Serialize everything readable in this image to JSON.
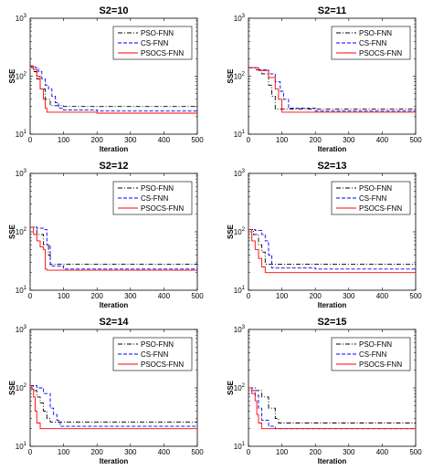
{
  "colors": {
    "PSO-FNN": "#000000",
    "CS-FNN": "#0000ff",
    "PSOCS-FNN": "#ff0000"
  },
  "chart_data": [
    {
      "type": "line",
      "title": "S2=10",
      "xlabel": "Iteration",
      "ylabel": "SSE",
      "xlim": [
        0,
        500
      ],
      "ylim": [
        10,
        1000
      ],
      "yscale": "log",
      "xticks": [
        "0",
        "100",
        "200",
        "300",
        "400",
        "500"
      ],
      "yticks": [
        {
          "base": "10",
          "exp": "1"
        },
        {
          "base": "10",
          "exp": "2"
        },
        {
          "base": "10",
          "exp": "3"
        }
      ],
      "legend": "top-right",
      "series": [
        {
          "name": "PSO-FNN",
          "style": "dashdot",
          "x": [
            0,
            5,
            10,
            20,
            30,
            45,
            60,
            100,
            500
          ],
          "y": [
            150,
            140,
            120,
            90,
            60,
            40,
            31,
            30,
            30
          ]
        },
        {
          "name": "CS-FNN",
          "style": "dashed",
          "x": [
            0,
            15,
            25,
            35,
            45,
            55,
            65,
            75,
            85,
            100,
            200,
            500
          ],
          "y": [
            150,
            140,
            120,
            90,
            70,
            60,
            45,
            35,
            28,
            26,
            25,
            25
          ]
        },
        {
          "name": "PSOCS-FNN",
          "style": "solid",
          "x": [
            0,
            10,
            20,
            30,
            40,
            45,
            50,
            200,
            500
          ],
          "y": [
            150,
            130,
            100,
            60,
            40,
            28,
            24,
            23,
            23
          ]
        }
      ]
    },
    {
      "type": "line",
      "title": "S2=11",
      "xlabel": "Iteration",
      "ylabel": "SSE",
      "xlim": [
        0,
        500
      ],
      "ylim": [
        10,
        1000
      ],
      "yscale": "log",
      "xticks": [
        "0",
        "100",
        "200",
        "300",
        "400",
        "500"
      ],
      "yticks": [
        {
          "base": "10",
          "exp": "1"
        },
        {
          "base": "10",
          "exp": "2"
        },
        {
          "base": "10",
          "exp": "3"
        }
      ],
      "legend": "top-right",
      "series": [
        {
          "name": "PSO-FNN",
          "style": "dashdot",
          "x": [
            0,
            20,
            40,
            60,
            70,
            80,
            500
          ],
          "y": [
            140,
            130,
            110,
            70,
            45,
            27,
            27
          ]
        },
        {
          "name": "CS-FNN",
          "style": "dashed",
          "x": [
            0,
            30,
            60,
            80,
            95,
            105,
            120,
            200,
            500
          ],
          "y": [
            140,
            130,
            110,
            80,
            55,
            40,
            28,
            25,
            25
          ]
        },
        {
          "name": "PSOCS-FNN",
          "style": "solid",
          "x": [
            0,
            30,
            60,
            80,
            90,
            100,
            500
          ],
          "y": [
            140,
            125,
            95,
            60,
            40,
            24,
            23
          ]
        }
      ]
    },
    {
      "type": "line",
      "title": "S2=12",
      "xlabel": "Iteration",
      "ylabel": "SSE",
      "xlim": [
        0,
        500
      ],
      "ylim": [
        10,
        1000
      ],
      "yscale": "log",
      "xticks": [
        "0",
        "100",
        "200",
        "300",
        "400",
        "500"
      ],
      "yticks": [
        {
          "base": "10",
          "exp": "1"
        },
        {
          "base": "10",
          "exp": "2"
        },
        {
          "base": "10",
          "exp": "3"
        }
      ],
      "legend": "top-right",
      "series": [
        {
          "name": "PSO-FNN",
          "style": "dashdot",
          "x": [
            0,
            20,
            40,
            55,
            60,
            500
          ],
          "y": [
            120,
            90,
            60,
            40,
            28,
            27
          ]
        },
        {
          "name": "CS-FNN",
          "style": "dashed",
          "x": [
            0,
            20,
            40,
            50,
            60,
            100,
            500
          ],
          "y": [
            120,
            115,
            110,
            60,
            26,
            23,
            22
          ]
        },
        {
          "name": "PSOCS-FNN",
          "style": "solid",
          "x": [
            0,
            10,
            20,
            30,
            40,
            45,
            50,
            500
          ],
          "y": [
            120,
            90,
            70,
            55,
            50,
            23,
            22,
            22
          ]
        }
      ]
    },
    {
      "type": "line",
      "title": "S2=13",
      "xlabel": "Iteration",
      "ylabel": "SSE",
      "xlim": [
        0,
        500
      ],
      "ylim": [
        10,
        1000
      ],
      "yscale": "log",
      "xticks": [
        "0",
        "100",
        "200",
        "300",
        "400",
        "500"
      ],
      "yticks": [
        {
          "base": "10",
          "exp": "1"
        },
        {
          "base": "10",
          "exp": "2"
        },
        {
          "base": "10",
          "exp": "3"
        }
      ],
      "legend": "top-right",
      "series": [
        {
          "name": "PSO-FNN",
          "style": "dashdot",
          "x": [
            0,
            15,
            30,
            40,
            50,
            500
          ],
          "y": [
            110,
            90,
            60,
            45,
            28,
            27
          ]
        },
        {
          "name": "CS-FNN",
          "style": "dashed",
          "x": [
            0,
            20,
            40,
            50,
            60,
            70,
            200,
            500
          ],
          "y": [
            110,
            105,
            90,
            70,
            40,
            24,
            23,
            23
          ]
        },
        {
          "name": "PSOCS-FNN",
          "style": "solid",
          "x": [
            0,
            10,
            20,
            30,
            40,
            50,
            500
          ],
          "y": [
            110,
            70,
            50,
            35,
            25,
            20,
            20
          ]
        }
      ]
    },
    {
      "type": "line",
      "title": "S2=14",
      "xlabel": "Iteration",
      "ylabel": "SSE",
      "xlim": [
        0,
        500
      ],
      "ylim": [
        10,
        1000
      ],
      "yscale": "log",
      "xticks": [
        "0",
        "100",
        "200",
        "300",
        "400",
        "500"
      ],
      "yticks": [
        {
          "base": "10",
          "exp": "1"
        },
        {
          "base": "10",
          "exp": "2"
        },
        {
          "base": "10",
          "exp": "3"
        }
      ],
      "legend": "top-right",
      "series": [
        {
          "name": "PSO-FNN",
          "style": "dashdot",
          "x": [
            0,
            10,
            20,
            30,
            40,
            50,
            60,
            500
          ],
          "y": [
            110,
            90,
            70,
            55,
            40,
            30,
            26,
            26
          ]
        },
        {
          "name": "CS-FNN",
          "style": "dashed",
          "x": [
            0,
            20,
            40,
            60,
            70,
            80,
            90,
            500
          ],
          "y": [
            110,
            100,
            80,
            45,
            35,
            28,
            22,
            22
          ]
        },
        {
          "name": "PSOCS-FNN",
          "style": "solid",
          "x": [
            0,
            5,
            10,
            15,
            20,
            30,
            500
          ],
          "y": [
            110,
            95,
            70,
            40,
            25,
            20,
            20
          ]
        }
      ]
    },
    {
      "type": "line",
      "title": "S2=15",
      "xlabel": "Iteration",
      "ylabel": "SSE",
      "xlim": [
        0,
        500
      ],
      "ylim": [
        10,
        1000
      ],
      "yscale": "log",
      "xticks": [
        "0",
        "100",
        "200",
        "300",
        "400",
        "500"
      ],
      "yticks": [
        {
          "base": "10",
          "exp": "1"
        },
        {
          "base": "10",
          "exp": "2"
        },
        {
          "base": "10",
          "exp": "3"
        }
      ],
      "legend": "top-right",
      "series": [
        {
          "name": "PSO-FNN",
          "style": "dashdot",
          "x": [
            0,
            20,
            40,
            60,
            80,
            90,
            500
          ],
          "y": [
            100,
            90,
            70,
            45,
            30,
            25,
            25
          ]
        },
        {
          "name": "CS-FNN",
          "style": "dashed",
          "x": [
            0,
            10,
            20,
            30,
            40,
            60,
            80,
            500
          ],
          "y": [
            100,
            90,
            75,
            45,
            28,
            22,
            20,
            20
          ]
        },
        {
          "name": "PSOCS-FNN",
          "style": "solid",
          "x": [
            0,
            10,
            20,
            25,
            30,
            40,
            500
          ],
          "y": [
            100,
            80,
            60,
            35,
            25,
            20,
            20
          ]
        }
      ]
    }
  ]
}
